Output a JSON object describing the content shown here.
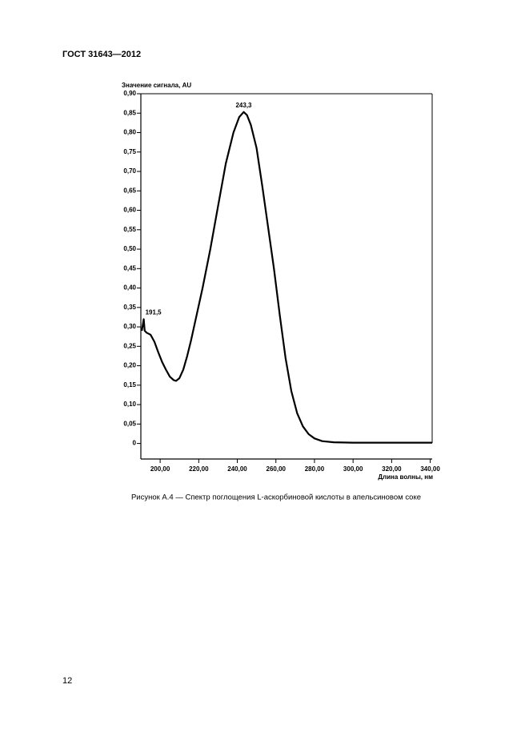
{
  "header": {
    "title": "ГОСТ 31643—2012"
  },
  "chart_data": {
    "type": "line",
    "ylabel": "Значение сигнала, AU",
    "xlabel": "Длина волны, нм",
    "annotations": [
      "243,3",
      "191,5"
    ],
    "x": [
      190.5,
      191.5,
      192,
      193,
      195,
      197,
      199,
      201,
      203,
      205,
      207,
      208.2,
      210,
      212,
      214,
      216,
      218,
      222,
      226,
      230,
      234,
      238,
      241,
      243.3,
      245,
      247,
      250,
      253,
      255,
      257,
      259,
      262,
      265,
      268,
      271,
      274,
      277,
      280,
      284,
      290,
      300,
      320,
      341
    ],
    "values": [
      0.29,
      0.32,
      0.29,
      0.285,
      0.28,
      0.262,
      0.235,
      0.21,
      0.19,
      0.172,
      0.163,
      0.161,
      0.168,
      0.19,
      0.225,
      0.265,
      0.31,
      0.4,
      0.5,
      0.61,
      0.72,
      0.8,
      0.84,
      0.853,
      0.845,
      0.82,
      0.76,
      0.66,
      0.59,
      0.52,
      0.45,
      0.33,
      0.22,
      0.135,
      0.078,
      0.044,
      0.024,
      0.013,
      0.006,
      0.003,
      0.002,
      0.002,
      0.002
    ],
    "color": "#000000",
    "xlim": [
      190,
      341
    ],
    "ylim": [
      -0.04,
      0.9
    ],
    "xticks": [
      {
        "value": 200,
        "label": "200,00"
      },
      {
        "value": 220,
        "label": "220,00"
      },
      {
        "value": 240,
        "label": "240,00"
      },
      {
        "value": 260,
        "label": "260,00"
      },
      {
        "value": 280,
        "label": "280,00"
      },
      {
        "value": 300,
        "label": "300,00"
      },
      {
        "value": 320,
        "label": "320,00"
      },
      {
        "value": 340,
        "label": "340,00"
      }
    ],
    "yticks": [
      0,
      {
        "value": 0.05,
        "label": "0,05"
      },
      {
        "value": 0.1,
        "label": "0,10"
      },
      {
        "value": 0.15,
        "label": "0,15"
      },
      {
        "value": 0.2,
        "label": "0,20"
      },
      {
        "value": 0.25,
        "label": "0,25"
      },
      {
        "value": 0.3,
        "label": "0,30"
      },
      {
        "value": 0.35,
        "label": "0,35"
      },
      {
        "value": 0.4,
        "label": "0,40"
      },
      {
        "value": 0.45,
        "label": "0,45"
      },
      {
        "value": 0.5,
        "label": "0,50"
      },
      {
        "value": 0.55,
        "label": "0,55"
      },
      {
        "value": 0.6,
        "label": "0,60"
      },
      {
        "value": 0.65,
        "label": "0,65"
      },
      {
        "value": 0.7,
        "label": "0,70"
      },
      {
        "value": 0.75,
        "label": "0,75"
      },
      {
        "value": 0.8,
        "label": "0,80"
      },
      {
        "value": 0.85,
        "label": "0,85"
      },
      {
        "value": 0.9,
        "label": "0,90"
      }
    ]
  },
  "caption": "Рисунок А.4 — Спектр поглощения L-аскорбиновой кислоты в апельсиновом соке",
  "page_number": "12"
}
